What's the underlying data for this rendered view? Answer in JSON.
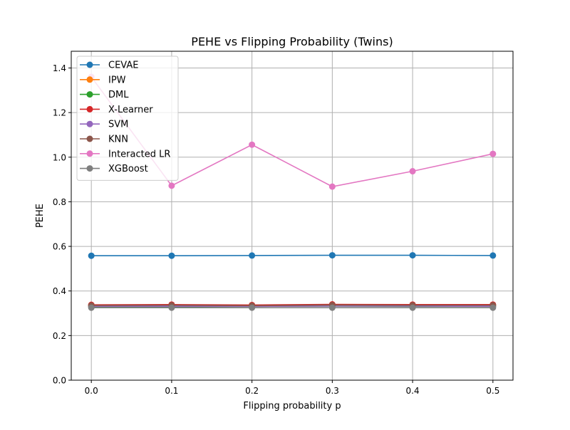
{
  "chart_data": {
    "type": "line",
    "title": "PEHE vs Flipping Probability (Twins)",
    "xlabel": "Flipping probability p",
    "ylabel": "PEHE",
    "xlim": [
      -0.025,
      0.525
    ],
    "ylim": [
      0.0,
      1.475
    ],
    "x_ticks": [
      0.0,
      0.1,
      0.2,
      0.3,
      0.4,
      0.5
    ],
    "x_tick_labels": [
      "0.0",
      "0.1",
      "0.2",
      "0.3",
      "0.4",
      "0.5"
    ],
    "y_ticks": [
      0.0,
      0.2,
      0.4,
      0.6,
      0.8,
      1.0,
      1.2,
      1.4
    ],
    "y_tick_labels": [
      "0.0",
      "0.2",
      "0.4",
      "0.6",
      "0.8",
      "1.0",
      "1.2",
      "1.4"
    ],
    "grid": true,
    "legend_position": "top-left",
    "x": [
      0.0,
      0.1,
      0.2,
      0.3,
      0.4,
      0.5
    ],
    "series": [
      {
        "name": "CEVAE",
        "color": "#1f77b4",
        "values": [
          0.558,
          0.558,
          0.559,
          0.56,
          0.56,
          0.559
        ]
      },
      {
        "name": "IPW",
        "color": "#ff7f0e",
        "values": [
          0.337,
          0.337,
          0.336,
          0.338,
          0.337,
          0.337
        ]
      },
      {
        "name": "DML",
        "color": "#2ca02c",
        "values": [
          0.33,
          0.329,
          0.331,
          0.332,
          0.331,
          0.331
        ]
      },
      {
        "name": "X-Learner",
        "color": "#d62728",
        "values": [
          0.338,
          0.339,
          0.337,
          0.34,
          0.339,
          0.339
        ]
      },
      {
        "name": "SVM",
        "color": "#9467bd",
        "values": [
          0.331,
          0.331,
          0.331,
          0.332,
          0.332,
          0.331
        ]
      },
      {
        "name": "KNN",
        "color": "#8c564b",
        "values": [
          0.335,
          0.336,
          0.334,
          0.337,
          0.336,
          0.336
        ]
      },
      {
        "name": "Interacted LR",
        "color": "#e377c2",
        "values": [
          1.36,
          0.872,
          1.056,
          0.868,
          0.937,
          1.015
        ]
      },
      {
        "name": "XGBoost",
        "color": "#7f7f7f",
        "values": [
          0.325,
          0.325,
          0.325,
          0.325,
          0.325,
          0.325
        ]
      }
    ]
  }
}
